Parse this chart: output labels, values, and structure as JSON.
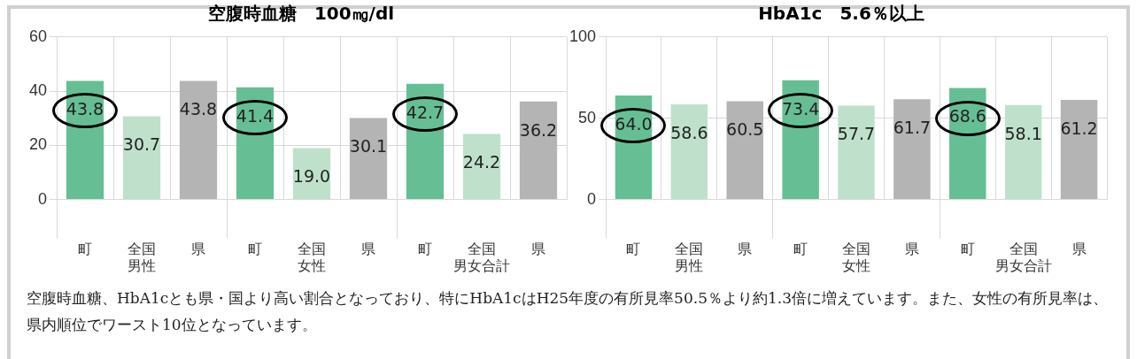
{
  "chart_data": [
    {
      "type": "bar",
      "title": "空腹時血糖　100㎎/dl",
      "categories": [
        "町",
        "全国男性",
        "県",
        "町",
        "全国女性",
        "県",
        "町",
        "全国男女合計",
        "県"
      ],
      "values": [
        43.8,
        30.7,
        43.8,
        41.4,
        19.0,
        30.1,
        42.7,
        24.2,
        36.2
      ],
      "value_labels": [
        "43.8",
        "30.7",
        "43.8",
        "41.4",
        "19.0",
        "30.1",
        "42.7",
        "24.2",
        "36.2"
      ],
      "colors": [
        "#66bf94",
        "#bfe1cb",
        "#b3b4b3",
        "#66bf94",
        "#bfe1cb",
        "#b3b4b3",
        "#66bf94",
        "#bfe1cb",
        "#b3b4b3"
      ],
      "ylim": [
        0,
        60
      ],
      "yticks": [
        0,
        20,
        40,
        60
      ],
      "grid": true,
      "legend": false
    },
    {
      "type": "bar",
      "title": "HbA1c　5.6％以上",
      "categories": [
        "町",
        "全国男性",
        "県",
        "町",
        "全国女性",
        "県",
        "町",
        "全国男女合計",
        "県"
      ],
      "values": [
        64.0,
        58.6,
        60.5,
        73.4,
        57.7,
        61.7,
        68.6,
        58.1,
        61.2
      ],
      "value_labels": [
        "64.0",
        "58.6",
        "60.5",
        "73.4",
        "57.7",
        "61.7",
        "68.6",
        "58.1",
        "61.2"
      ],
      "colors": [
        "#66bf94",
        "#bfe1cb",
        "#b3b4b3",
        "#66bf94",
        "#bfe1cb",
        "#b3b4b3",
        "#66bf94",
        "#bfe1cb",
        "#b3b4b3"
      ],
      "ylim": [
        0,
        100
      ],
      "yticks": [
        0,
        50,
        100
      ],
      "grid": true,
      "legend": false,
      "annotations": [
        "空腹時血糖、HbA1cとも県・国より高い割合となっており、特にHbA1cはH25年度の有所見率50.5％より約1.3倍に増えています。また、女性の有所見率は、県内順位でワースト10位となっています。"
      ]
    }
  ]
}
